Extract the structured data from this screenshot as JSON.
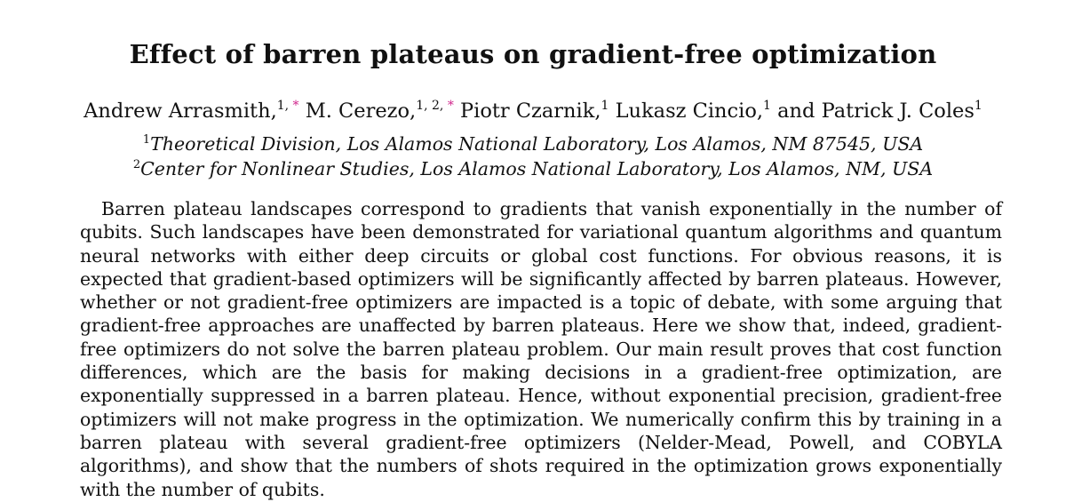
{
  "paper": {
    "title": "Effect of barren plateaus on gradient-free optimization",
    "authors": [
      {
        "name": "Andrew Arrasmith,",
        "affils": "1, ",
        "star": "*"
      },
      {
        "name": "M. Cerezo,",
        "affils": "1, 2, ",
        "star": "*"
      },
      {
        "name": "Piotr Czarnik,",
        "affils": "1",
        "star": ""
      },
      {
        "name": "Lukasz Cincio,",
        "affils": "1",
        "star": ""
      },
      {
        "name": "and Patrick J. Coles",
        "affils": "1",
        "star": ""
      }
    ],
    "affiliations": [
      {
        "mark": "1",
        "text": "Theoretical Division, Los Alamos National Laboratory, Los Alamos, NM 87545, USA"
      },
      {
        "mark": "2",
        "text": "Center for Nonlinear Studies, Los Alamos National Laboratory, Los Alamos, NM, USA"
      }
    ],
    "abstract": "Barren plateau landscapes correspond to gradients that vanish exponentially in the number of qubits. Such landscapes have been demonstrated for variational quantum algorithms and quantum neural networks with either deep circuits or global cost functions. For obvious reasons, it is expected that gradient-based optimizers will be significantly affected by barren plateaus. However, whether or not gradient-free optimizers are impacted is a topic of debate, with some arguing that gradient-free approaches are unaffected by barren plateaus. Here we show that, indeed, gradient-free optimizers do not solve the barren plateau problem. Our main result proves that cost function differences, which are the basis for making decisions in a gradient-free optimization, are exponentially suppressed in a barren plateau. Hence, without exponential precision, gradient-free optimizers will not make progress in the optimization. We numerically confirm this by training in a barren plateau with several gradient-free optimizers (Nelder-Mead, Powell, and COBYLA algorithms), and show that the numbers of shots required in the optimization grows exponentially with the number of qubits.",
    "colors": {
      "text": "#111111",
      "star": "#d0248b"
    }
  }
}
